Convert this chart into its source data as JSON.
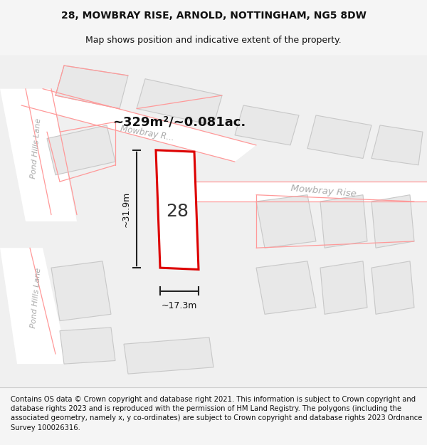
{
  "title_line1": "28, MOWBRAY RISE, ARNOLD, NOTTINGHAM, NG5 8DW",
  "title_line2": "Map shows position and indicative extent of the property.",
  "area_text": "~329m²/~0.081ac.",
  "width_label": "~17.3m",
  "height_label": "~31.9m",
  "number_label": "28",
  "street_label1": "Mowbray R...",
  "street_label2": "Mowbray Rise",
  "street_label_left1": "Pond Hills Lane",
  "street_label_left2": "Pond Hills Lane",
  "footer_text": "Contains OS data © Crown copyright and database right 2021. This information is subject to Crown copyright and database rights 2023 and is reproduced with the permission of HM Land Registry. The polygons (including the associated geometry, namely x, y co-ordinates) are subject to Crown copyright and database rights 2023 Ordnance Survey 100026316.",
  "bg_color": "#f5f5f5",
  "map_bg": "#f0f0f0",
  "building_fill": "#e8e8e8",
  "building_edge": "#c0c0c0",
  "road_color": "#ffffff",
  "highlight_color": "#ff0000",
  "dim_line_color": "#222222",
  "street_color": "#aaaaaa",
  "pink_line_color": "#ff8888",
  "title_fontsize": 10,
  "footer_fontsize": 7.2,
  "figsize": [
    6.0,
    6.25
  ],
  "dpi": 100
}
